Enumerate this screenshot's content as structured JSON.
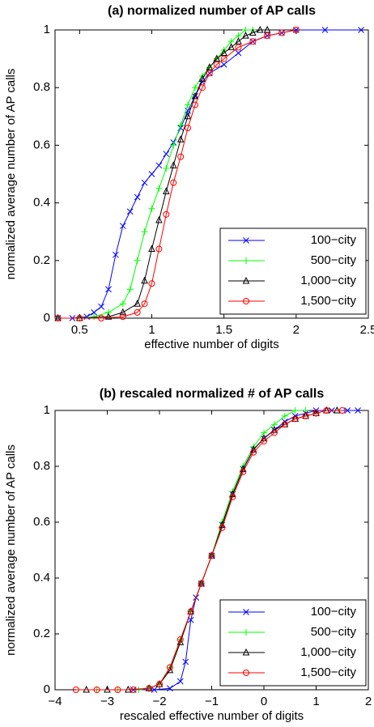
{
  "chart_data": [
    {
      "type": "line",
      "title": "(a) normalized number of AP calls",
      "xlabel": "effective number of digits",
      "ylabel": "normalized average number of AP calls",
      "xlim": [
        0.33,
        2.5
      ],
      "ylim": [
        0,
        1
      ],
      "xticks": [
        0.5,
        1,
        1.5,
        2,
        2.5
      ],
      "yticks": [
        0,
        0.2,
        0.4,
        0.6,
        0.8,
        1
      ],
      "legend": "lower right",
      "series": [
        {
          "name": "100−city",
          "color": "#0000ff",
          "marker": "x",
          "x": [
            0.35,
            0.45,
            0.55,
            0.6,
            0.65,
            0.7,
            0.75,
            0.8,
            0.85,
            0.9,
            0.95,
            1.0,
            1.05,
            1.1,
            1.15,
            1.2,
            1.25,
            1.3,
            1.35,
            1.4,
            1.5,
            1.6,
            1.7,
            1.8,
            1.9,
            2.0,
            2.2,
            2.45
          ],
          "values": [
            0,
            0,
            0.005,
            0.02,
            0.04,
            0.1,
            0.22,
            0.32,
            0.37,
            0.42,
            0.47,
            0.5,
            0.53,
            0.57,
            0.61,
            0.66,
            0.72,
            0.77,
            0.82,
            0.85,
            0.88,
            0.92,
            0.96,
            0.98,
            0.99,
            1,
            1,
            1
          ]
        },
        {
          "name": "500−city",
          "color": "#00ff00",
          "marker": "+",
          "x": [
            0.35,
            0.5,
            0.6,
            0.7,
            0.8,
            0.85,
            0.9,
            0.95,
            1.0,
            1.05,
            1.1,
            1.15,
            1.2,
            1.25,
            1.3,
            1.35,
            1.4,
            1.45,
            1.5,
            1.55,
            1.6,
            1.65,
            1.7
          ],
          "values": [
            0,
            0,
            0.005,
            0.02,
            0.05,
            0.1,
            0.2,
            0.3,
            0.38,
            0.45,
            0.52,
            0.6,
            0.67,
            0.74,
            0.8,
            0.84,
            0.87,
            0.9,
            0.93,
            0.96,
            0.98,
            1,
            1
          ]
        },
        {
          "name": "1,000−city",
          "color": "#000000",
          "marker": "^",
          "x": [
            0.35,
            0.5,
            0.7,
            0.8,
            0.9,
            0.95,
            1.0,
            1.05,
            1.1,
            1.15,
            1.2,
            1.25,
            1.3,
            1.35,
            1.4,
            1.45,
            1.5,
            1.55,
            1.6,
            1.65,
            1.7,
            1.75,
            1.8
          ],
          "values": [
            0,
            0,
            0.005,
            0.02,
            0.05,
            0.13,
            0.24,
            0.34,
            0.44,
            0.53,
            0.62,
            0.7,
            0.77,
            0.83,
            0.87,
            0.9,
            0.92,
            0.94,
            0.96,
            0.98,
            0.99,
            1,
            1
          ]
        },
        {
          "name": "1,500−city",
          "color": "#ff0000",
          "marker": "o",
          "x": [
            0.35,
            0.5,
            0.65,
            0.8,
            0.9,
            0.95,
            1.0,
            1.05,
            1.1,
            1.15,
            1.2,
            1.25,
            1.3,
            1.35,
            1.4,
            1.45,
            1.5,
            1.6,
            1.7,
            1.8,
            1.9,
            2.0
          ],
          "values": [
            0,
            0,
            0,
            0.005,
            0.02,
            0.05,
            0.12,
            0.24,
            0.36,
            0.47,
            0.56,
            0.66,
            0.74,
            0.8,
            0.85,
            0.88,
            0.9,
            0.94,
            0.96,
            0.98,
            0.99,
            1
          ]
        }
      ]
    },
    {
      "type": "line",
      "title": "(b) rescaled normalized # of AP calls",
      "xlabel": "rescaled effective number of digits",
      "ylabel": "normalized average number of AP calls",
      "xlim": [
        -4,
        2
      ],
      "ylim": [
        0,
        1
      ],
      "xticks": [
        {
          "value": -4,
          "label": "−4"
        },
        {
          "value": -3,
          "label": "−3"
        },
        {
          "value": -2,
          "label": "−2"
        },
        {
          "value": -1,
          "label": "−1"
        },
        0,
        1,
        2
      ],
      "yticks": [
        0,
        0.2,
        0.4,
        0.6,
        0.8,
        1
      ],
      "legend": "lower right",
      "series": [
        {
          "name": "100−city",
          "color": "#0000ff",
          "marker": "x",
          "x": [
            -2.5,
            -2.1,
            -1.8,
            -1.6,
            -1.5,
            -1.4,
            -1.3,
            -1.2,
            -1.0,
            -0.8,
            -0.6,
            -0.4,
            -0.2,
            0,
            0.2,
            0.4,
            0.6,
            0.8,
            1.0,
            1.3,
            1.6,
            1.8
          ],
          "values": [
            0,
            0,
            0.005,
            0.03,
            0.1,
            0.25,
            0.33,
            0.38,
            0.48,
            0.59,
            0.7,
            0.79,
            0.86,
            0.9,
            0.93,
            0.96,
            0.98,
            0.99,
            1,
            1,
            1,
            1
          ]
        },
        {
          "name": "500−city",
          "color": "#00ff00",
          "marker": "+",
          "x": [
            -3.2,
            -2.8,
            -2.4,
            -2.2,
            -2.0,
            -1.8,
            -1.6,
            -1.4,
            -1.2,
            -1.0,
            -0.8,
            -0.6,
            -0.4,
            -0.2,
            0,
            0.2,
            0.4,
            0.6,
            0.8
          ],
          "values": [
            0,
            0,
            0,
            0.005,
            0.02,
            0.08,
            0.18,
            0.28,
            0.38,
            0.48,
            0.6,
            0.71,
            0.8,
            0.87,
            0.92,
            0.95,
            0.98,
            1,
            1
          ]
        },
        {
          "name": "1,000−city",
          "color": "#000000",
          "marker": "^",
          "x": [
            -3.4,
            -3.0,
            -2.6,
            -2.2,
            -2.0,
            -1.8,
            -1.6,
            -1.4,
            -1.2,
            -1.0,
            -0.8,
            -0.6,
            -0.4,
            -0.2,
            0,
            0.2,
            0.4,
            0.6,
            0.8,
            1.0,
            1.2,
            1.4
          ],
          "values": [
            0,
            0,
            0,
            0.005,
            0.02,
            0.07,
            0.17,
            0.28,
            0.38,
            0.48,
            0.59,
            0.7,
            0.79,
            0.86,
            0.9,
            0.93,
            0.95,
            0.97,
            0.98,
            0.99,
            1,
            1
          ]
        },
        {
          "name": "1,500−city",
          "color": "#ff0000",
          "marker": "o",
          "x": [
            -3.6,
            -3.2,
            -2.8,
            -2.5,
            -2.2,
            -2.0,
            -1.8,
            -1.6,
            -1.4,
            -1.2,
            -1.0,
            -0.8,
            -0.6,
            -0.4,
            -0.2,
            0,
            0.2,
            0.4,
            0.6,
            0.8,
            1.0,
            1.2,
            1.5
          ],
          "values": [
            0,
            0,
            0,
            0,
            0.005,
            0.02,
            0.08,
            0.18,
            0.28,
            0.38,
            0.48,
            0.58,
            0.69,
            0.78,
            0.85,
            0.89,
            0.92,
            0.95,
            0.97,
            0.98,
            0.99,
            1,
            1
          ]
        }
      ]
    }
  ]
}
